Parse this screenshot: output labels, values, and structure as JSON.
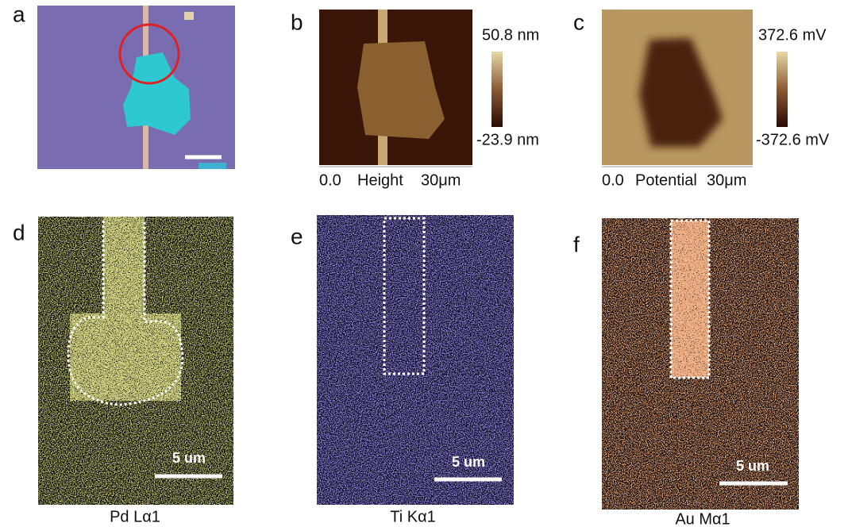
{
  "panels": [
    {
      "label": "a"
    },
    {
      "label": "b",
      "colorbar": {
        "max": "50.8 nm",
        "min": "-23.9 nm"
      },
      "axis": {
        "start": "0.0",
        "name": "Height",
        "end": "30μm"
      }
    },
    {
      "label": "c",
      "colorbar": {
        "max": "372.6 mV",
        "min": "-372.6 mV"
      },
      "axis": {
        "start": "0.0",
        "name": "Potential",
        "end": "30μm"
      }
    },
    {
      "label": "d",
      "scale_bar": "5 um",
      "caption": "Pd Lα1"
    },
    {
      "label": "e",
      "scale_bar": "5 um",
      "caption": "Ti Kα1"
    },
    {
      "label": "f",
      "scale_bar": "5 um",
      "caption": "Au Mα1"
    }
  ]
}
